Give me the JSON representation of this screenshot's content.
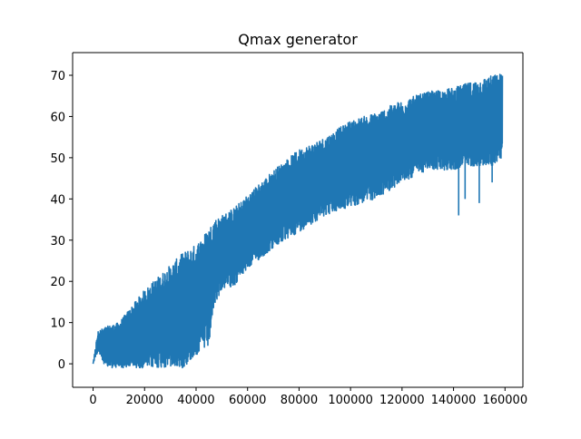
{
  "chart_data": {
    "type": "line",
    "title": "Qmax generator",
    "xlabel": "",
    "ylabel": "",
    "xlim": [
      -7950,
      166950
    ],
    "ylim": [
      -5.7,
      75.5
    ],
    "x_ticks": [
      0,
      20000,
      40000,
      60000,
      80000,
      100000,
      120000,
      140000,
      160000
    ],
    "x_tick_labels": [
      "0",
      "20000",
      "40000",
      "60000",
      "80000",
      "100000",
      "120000",
      "140000",
      "160000"
    ],
    "y_ticks": [
      0,
      10,
      20,
      30,
      40,
      50,
      60,
      70
    ],
    "y_tick_labels": [
      "0",
      "10",
      "20",
      "30",
      "40",
      "50",
      "60",
      "70"
    ],
    "grid": false,
    "legend": "none",
    "series": [
      {
        "color": "#1f77b4",
        "x_range": [
          0,
          159000
        ],
        "samples": 160000,
        "envelope": {
          "x": [
            0,
            2000,
            5000,
            10000,
            15000,
            20000,
            25000,
            30000,
            35000,
            40000,
            45000,
            47000,
            50000,
            55000,
            60000,
            70000,
            80000,
            90000,
            100000,
            110000,
            120000,
            130000,
            140000,
            145000,
            150000,
            155000,
            159000
          ],
          "upper": [
            0.5,
            8,
            9,
            10,
            14,
            18,
            21,
            24,
            27,
            29,
            33,
            35,
            36,
            38,
            41,
            47,
            52,
            55,
            59,
            61,
            64,
            66,
            67,
            68,
            69,
            70,
            70.5
          ],
          "lower": [
            0,
            3,
            -1,
            -1,
            -1,
            -1,
            -1,
            -1,
            -1,
            2,
            4,
            14,
            18,
            19,
            23,
            28,
            32,
            36,
            38,
            40,
            44,
            47,
            47,
            48,
            48,
            48,
            50
          ]
        },
        "dips": [
          {
            "x": 142000,
            "y": 36
          },
          {
            "x": 144500,
            "y": 40
          },
          {
            "x": 150000,
            "y": 39
          },
          {
            "x": 155000,
            "y": 44
          }
        ]
      }
    ]
  }
}
